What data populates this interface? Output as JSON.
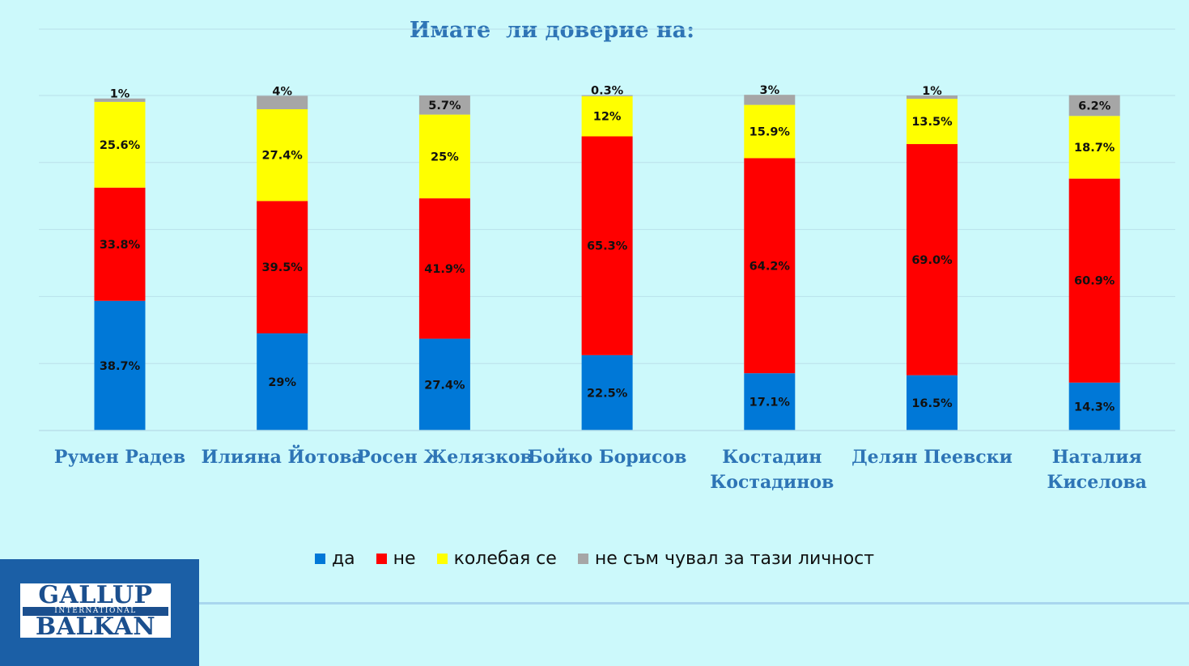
{
  "chart_data": {
    "type": "bar",
    "stacked": true,
    "title": "Имате  ли доверие на:",
    "categories": [
      "Румен Радев",
      "Илияна Йотова",
      "Росен Желязков",
      "Бойко Борисов",
      "Костадин Костадинов",
      "Делян Пеевски",
      "Наталия Киселова"
    ],
    "series": [
      {
        "name": "да",
        "color": "#0078d7",
        "values": [
          38.7,
          29,
          27.4,
          22.5,
          17.1,
          16.5,
          14.3
        ],
        "labels": [
          "38.7%",
          "29%",
          "27.4%",
          "22.5%",
          "17.1%",
          "16.5%",
          "14.3%"
        ]
      },
      {
        "name": "не",
        "color": "#ff0000",
        "values": [
          33.8,
          39.5,
          41.9,
          65.3,
          64.2,
          69.0,
          60.9
        ],
        "labels": [
          "33.8%",
          "39.5%",
          "41.9%",
          "65.3%",
          "64.2%",
          "69.0%",
          "60.9%"
        ]
      },
      {
        "name": "колебая се",
        "color": "#ffff00",
        "values": [
          25.6,
          27.4,
          25,
          12,
          15.9,
          13.5,
          18.7
        ],
        "labels": [
          "25.6%",
          "27.4%",
          "25%",
          "12%",
          "15.9%",
          "13.5%",
          "18.7%"
        ]
      },
      {
        "name": "не съм чувал за тази личност",
        "color": "#a6a6a6",
        "values": [
          1,
          4,
          5.7,
          0.3,
          3,
          1,
          6.2
        ],
        "labels": [
          "1%",
          "4%",
          "5.7%",
          "0.3%",
          "3%",
          "1%",
          "6.2%"
        ]
      }
    ],
    "ylim": [
      0,
      100
    ],
    "grid": true,
    "legend_position": "bottom"
  },
  "logo": {
    "top": "GALLUP",
    "middle": "INTERNATIONAL",
    "bottom": "BALKAN"
  }
}
